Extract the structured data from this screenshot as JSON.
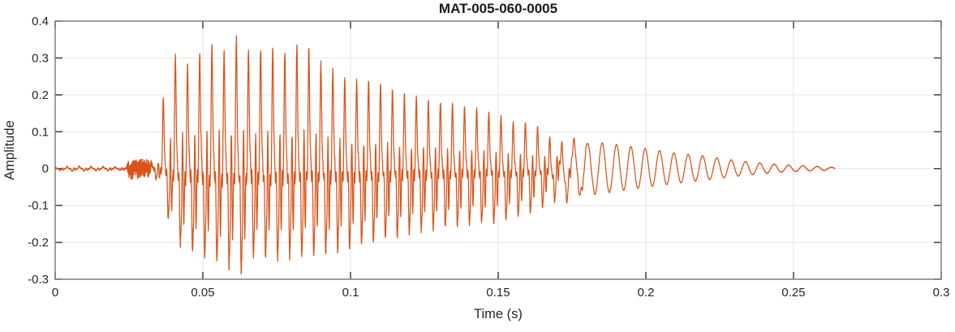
{
  "chart_data": {
    "type": "line",
    "title": "MAT-005-060-0005",
    "xlabel": "Time (s)",
    "ylabel": "Amplitude",
    "xlim": [
      0,
      0.3
    ],
    "ylim": [
      -0.3,
      0.4
    ],
    "grid": true,
    "legend": false,
    "xtick_values": [
      0,
      0.05,
      0.1,
      0.15,
      0.2,
      0.25,
      0.3
    ],
    "xtick_labels": [
      "0",
      "0.05",
      "0.1",
      "0.15",
      "0.2",
      "0.25",
      "0.3"
    ],
    "ytick_values": [
      -0.3,
      -0.2,
      -0.1,
      0,
      0.1,
      0.2,
      0.3,
      0.4
    ],
    "ytick_labels": [
      "-0.3",
      "-0.2",
      "-0.1",
      "0",
      "0.1",
      "0.2",
      "0.3",
      "0.4"
    ],
    "colors": {
      "line": "#D95319",
      "grid": "#E4E4E4",
      "box": "#808080",
      "tick": "#404040",
      "tick_text": "#262626",
      "label_text": "#262626",
      "title_text": "#1A1A1A",
      "background": "#FFFFFF"
    },
    "signal": {
      "description": "Single-channel audio waveform: near-silence 0-0.023 s, small noise burst 0.024-0.033 s (about +/-0.027), loud voiced burst from 0.036 s peaking +0.37 / -0.285 near 0.063 s, slow decay to 0.17 s, then smooth ~206 Hz decaying sinusoid tail ending at 0.264 s",
      "duration_s": 0.264,
      "samples": 6500,
      "seed": 1337,
      "pitch_hz": 245,
      "vibrato_depth": 0.3,
      "vibrato_hz": 9.5,
      "harmonics": [
        1,
        0.62,
        0.48,
        0.35,
        0.25,
        0.17,
        0.11
      ],
      "phases": [
        1.6,
        0.9,
        2.4,
        0.5,
        1.9,
        3.1,
        0.2
      ],
      "tail_hz": 206,
      "tail_phase": 0.6,
      "fade_to_tail_s": [
        0.163,
        0.186
      ],
      "peak_amplitude": 0.37,
      "min_amplitude": -0.285,
      "envelope": [
        [
          0.0,
          0.004,
          -0.004
        ],
        [
          0.006,
          0.007,
          -0.007
        ],
        [
          0.012,
          0.006,
          -0.006
        ],
        [
          0.018,
          0.005,
          -0.005
        ],
        [
          0.024,
          0.004,
          -0.004
        ],
        [
          0.032,
          0.004,
          -0.004
        ],
        [
          0.0335,
          0.03,
          -0.02
        ],
        [
          0.0345,
          0.048,
          -0.03
        ],
        [
          0.0355,
          0.045,
          -0.035
        ],
        [
          0.0365,
          0.19,
          -0.07
        ],
        [
          0.038,
          0.24,
          -0.13
        ],
        [
          0.04,
          0.3,
          -0.17
        ],
        [
          0.0425,
          0.31,
          -0.205
        ],
        [
          0.045,
          0.275,
          -0.225
        ],
        [
          0.0475,
          0.315,
          -0.23
        ],
        [
          0.05,
          0.305,
          -0.235
        ],
        [
          0.0525,
          0.33,
          -0.24
        ],
        [
          0.055,
          0.34,
          -0.25
        ],
        [
          0.0575,
          0.315,
          -0.255
        ],
        [
          0.06,
          0.335,
          -0.27
        ],
        [
          0.0625,
          0.37,
          -0.285
        ],
        [
          0.065,
          0.31,
          -0.255
        ],
        [
          0.0675,
          0.315,
          -0.235
        ],
        [
          0.07,
          0.32,
          -0.23
        ],
        [
          0.0725,
          0.33,
          -0.24
        ],
        [
          0.075,
          0.325,
          -0.245
        ],
        [
          0.0775,
          0.31,
          -0.235
        ],
        [
          0.08,
          0.325,
          -0.24
        ],
        [
          0.0825,
          0.33,
          -0.235
        ],
        [
          0.085,
          0.335,
          -0.23
        ],
        [
          0.0875,
          0.3,
          -0.235
        ],
        [
          0.09,
          0.285,
          -0.23
        ],
        [
          0.0925,
          0.27,
          -0.23
        ],
        [
          0.095,
          0.265,
          -0.225
        ],
        [
          0.0975,
          0.245,
          -0.215
        ],
        [
          0.1,
          0.237,
          -0.21
        ],
        [
          0.105,
          0.24,
          -0.2
        ],
        [
          0.11,
          0.23,
          -0.195
        ],
        [
          0.115,
          0.21,
          -0.185
        ],
        [
          0.12,
          0.196,
          -0.172
        ],
        [
          0.125,
          0.186,
          -0.165
        ],
        [
          0.13,
          0.18,
          -0.16
        ],
        [
          0.135,
          0.175,
          -0.155
        ],
        [
          0.14,
          0.168,
          -0.15
        ],
        [
          0.145,
          0.155,
          -0.148
        ],
        [
          0.15,
          0.143,
          -0.145
        ],
        [
          0.155,
          0.128,
          -0.136
        ],
        [
          0.16,
          0.125,
          -0.12
        ],
        [
          0.165,
          0.107,
          -0.11
        ],
        [
          0.17,
          0.093,
          -0.1
        ],
        [
          0.175,
          0.086,
          -0.09
        ],
        [
          0.18,
          0.078,
          -0.076
        ],
        [
          0.185,
          0.07,
          -0.068
        ],
        [
          0.19,
          0.065,
          -0.061
        ],
        [
          0.195,
          0.059,
          -0.056
        ],
        [
          0.2,
          0.054,
          -0.05
        ],
        [
          0.205,
          0.048,
          -0.045
        ],
        [
          0.21,
          0.042,
          -0.04
        ],
        [
          0.215,
          0.038,
          -0.035
        ],
        [
          0.22,
          0.034,
          -0.031
        ],
        [
          0.225,
          0.028,
          -0.026
        ],
        [
          0.23,
          0.022,
          -0.021
        ],
        [
          0.235,
          0.018,
          -0.017
        ],
        [
          0.24,
          0.014,
          -0.013
        ],
        [
          0.245,
          0.011,
          -0.01
        ],
        [
          0.25,
          0.009,
          -0.008
        ],
        [
          0.255,
          0.007,
          -0.006
        ],
        [
          0.26,
          0.005,
          -0.005
        ],
        [
          0.264,
          0.003,
          -0.003
        ]
      ],
      "noise_envelope": [
        [
          0.0,
          0.0012
        ],
        [
          0.022,
          0.0015
        ],
        [
          0.0242,
          0.003
        ],
        [
          0.025,
          0.026
        ],
        [
          0.028,
          0.028
        ],
        [
          0.0315,
          0.024
        ],
        [
          0.033,
          0.005
        ],
        [
          0.036,
          0.008
        ],
        [
          0.045,
          0.013
        ],
        [
          0.09,
          0.011
        ],
        [
          0.13,
          0.008
        ],
        [
          0.16,
          0.005
        ],
        [
          0.17,
          0.002
        ],
        [
          0.185,
          0.0008
        ],
        [
          0.264,
          0.0005
        ]
      ]
    }
  }
}
